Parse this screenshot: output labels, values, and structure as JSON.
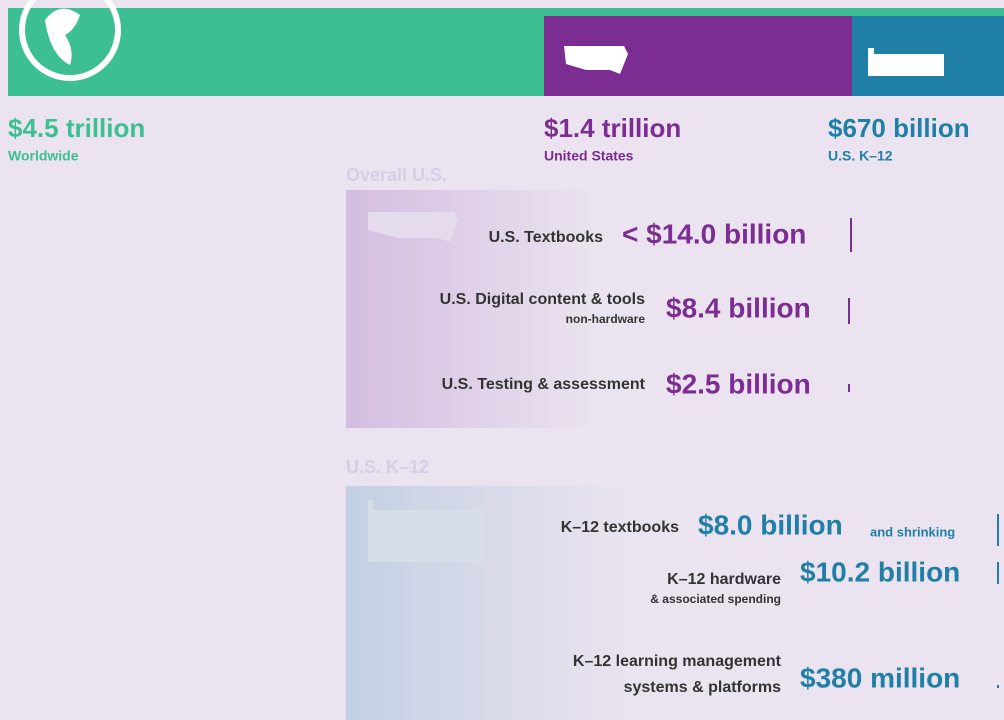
{
  "header": {
    "world": {
      "amount": "$4.5 trillion",
      "label": "Worldwide"
    },
    "us": {
      "amount": "$1.4 trillion",
      "label": "United States"
    },
    "k12": {
      "amount": "$670 billion",
      "label": "U.S. K–12"
    }
  },
  "overall": {
    "title": "Overall U.S.",
    "rows": [
      {
        "label": "U.S. Textbooks",
        "amount": "< $14.0 billion"
      },
      {
        "label": "U.S. Digital content & tools",
        "sublabel": "non-hardware",
        "amount": "$8.4 billion"
      },
      {
        "label": "U.S. Testing & assessment",
        "amount": "$2.5 billion"
      }
    ]
  },
  "k12": {
    "title": "U.S. K–12",
    "rows": [
      {
        "label": "K–12 textbooks",
        "amount": "$8.0 billion",
        "note": "and shrinking"
      },
      {
        "label": "K–12 hardware",
        "sublabel": "& associated spending",
        "amount": "$10.2 billion"
      },
      {
        "label": "K–12 learning management",
        "sublabel": "systems & platforms",
        "amount": "$380 million"
      }
    ]
  }
}
